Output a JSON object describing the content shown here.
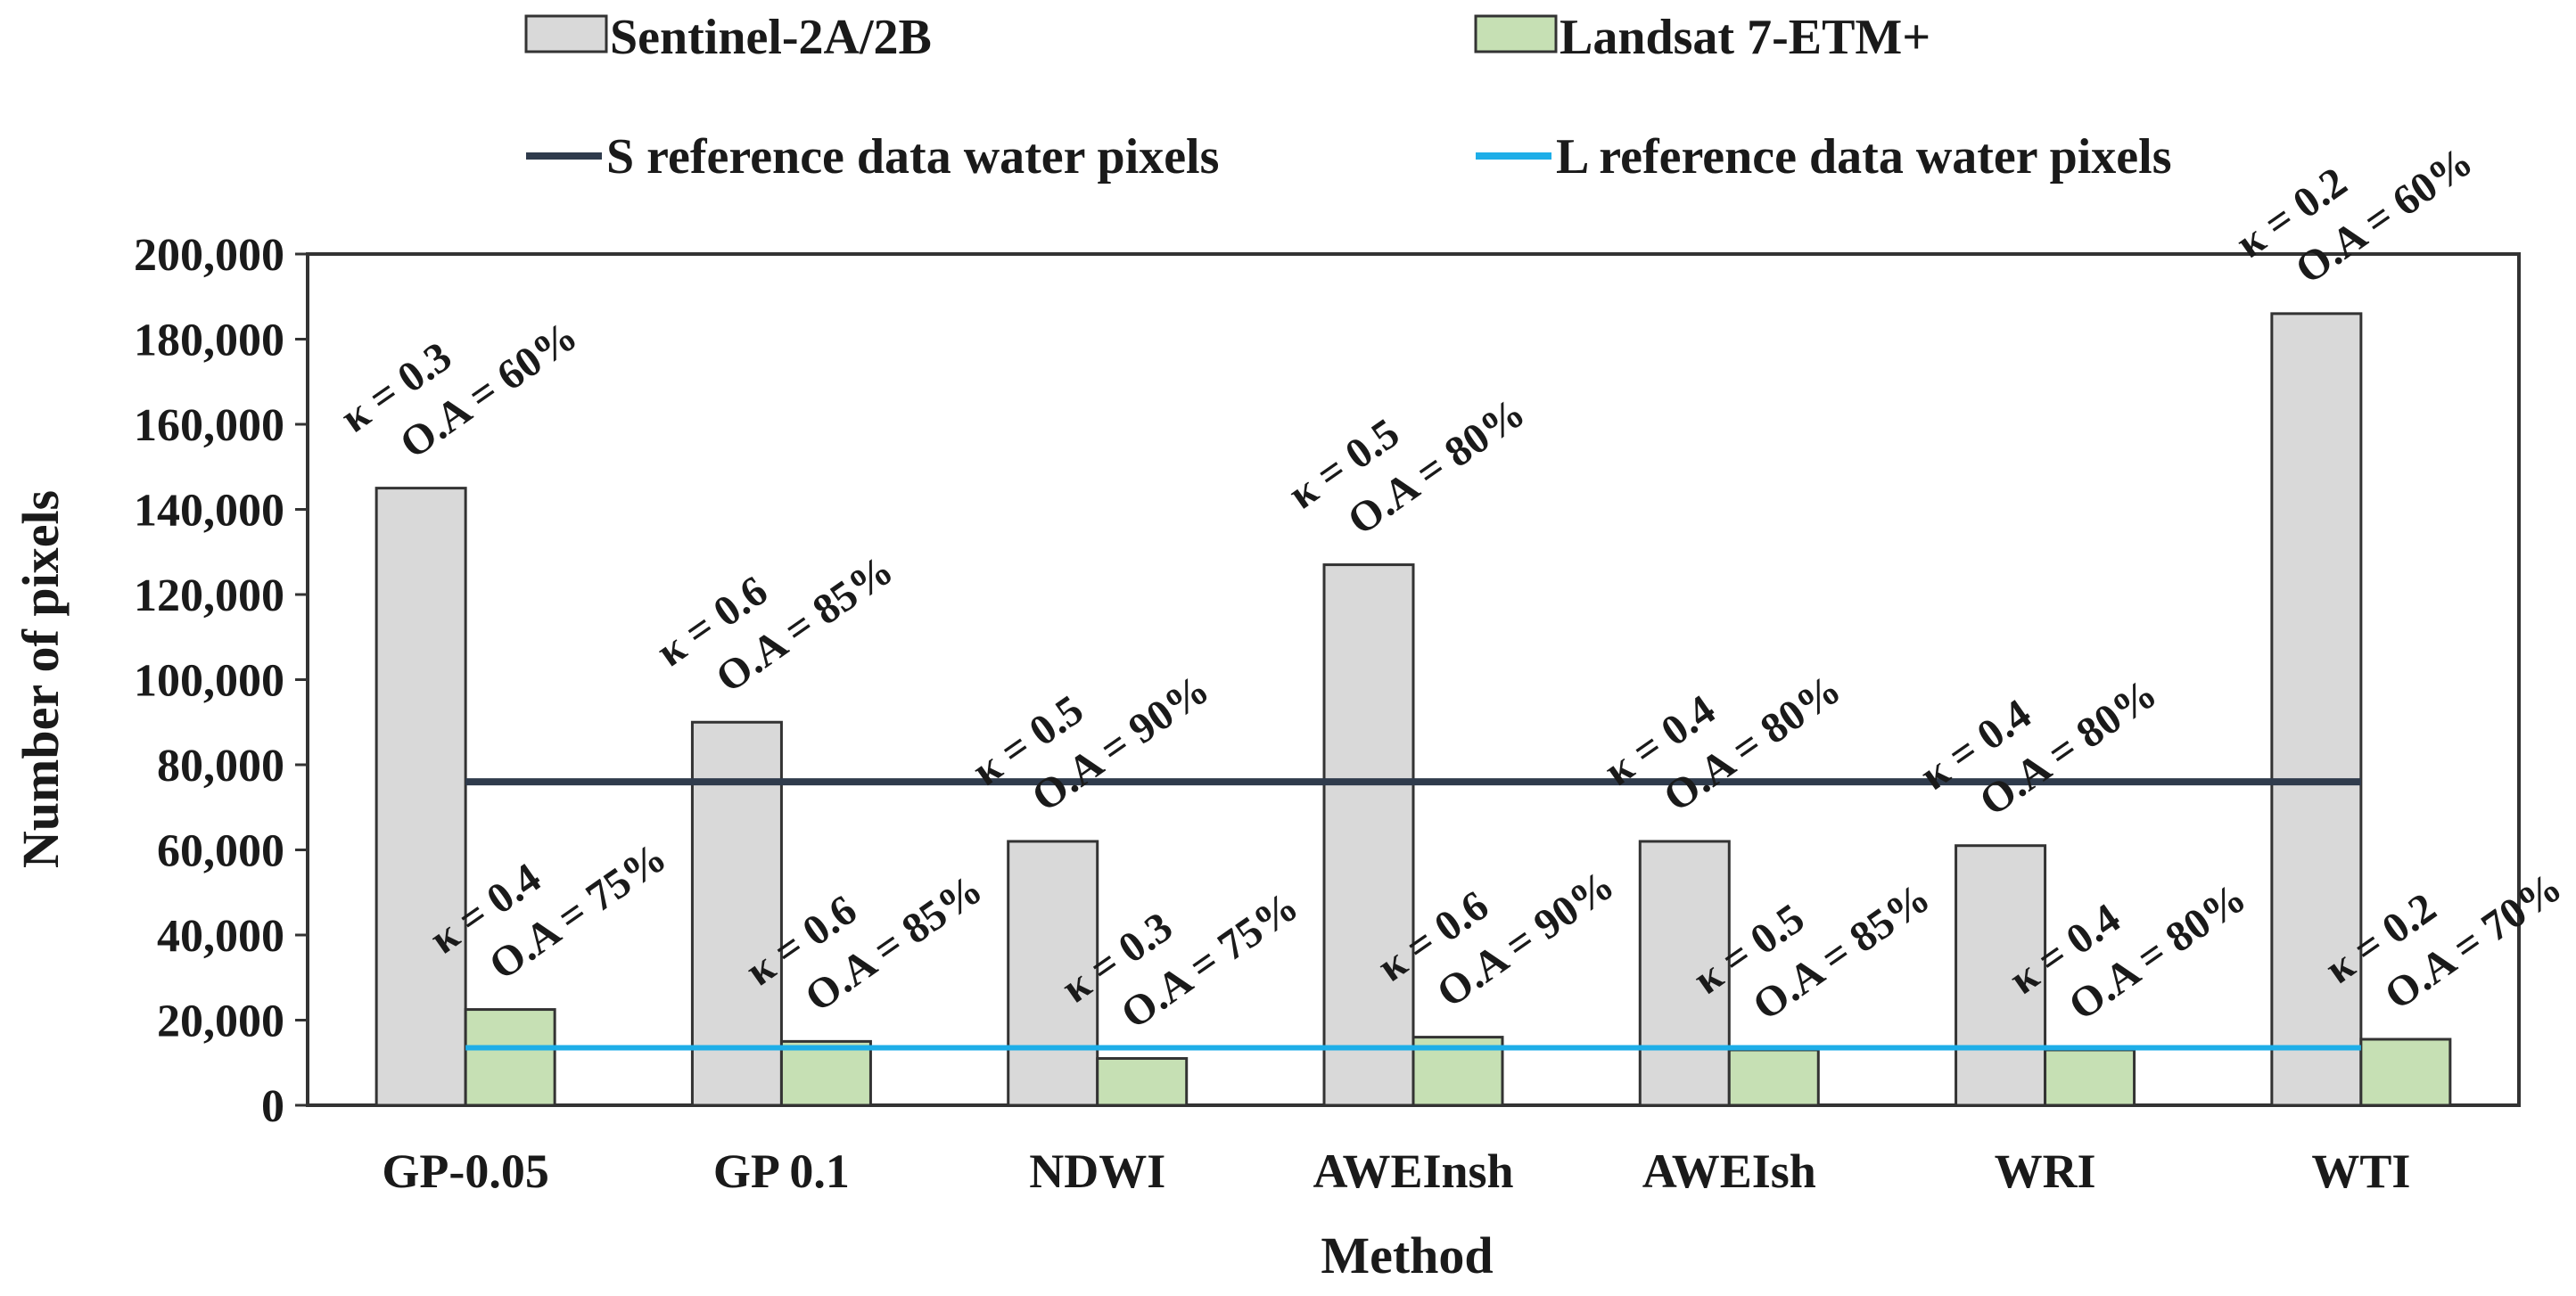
{
  "chart_data": {
    "type": "bar",
    "title": "",
    "xlabel": "Method",
    "ylabel": "Number of pixels",
    "ylim": [
      0,
      200000
    ],
    "y_ticks": [
      0,
      20000,
      40000,
      60000,
      80000,
      100000,
      120000,
      140000,
      160000,
      180000,
      200000
    ],
    "y_tick_labels": [
      "0",
      "20,000",
      "40,000",
      "60,000",
      "80,000",
      "100,000",
      "120,000",
      "140,000",
      "160,000",
      "180,000",
      "200,000"
    ],
    "categories": [
      "GP-0.05",
      "GP 0.1",
      "NDWI",
      "AWEInsh",
      "AWEIsh",
      "WRI",
      "WTI"
    ],
    "legend_position": "top",
    "series": [
      {
        "name": "Sentinel-2A/2B",
        "color": "#d9d9d9",
        "values": [
          145000,
          90000,
          62000,
          127000,
          62000,
          61000,
          186000
        ],
        "kappa_labels": [
          "κ = 0.3",
          "κ = 0.6",
          "κ = 0.5",
          "κ = 0.5",
          "κ = 0.4",
          "κ = 0.4",
          "κ = 0.2"
        ],
        "oa_labels": [
          "O.A = 60%",
          "O.A = 85%",
          "O.A = 90%",
          "O.A = 80%",
          "O.A = 80%",
          "O.A = 80%",
          "O.A = 60%"
        ]
      },
      {
        "name": "Landsat 7-ETM+",
        "color": "#c6e0b4",
        "values": [
          22500,
          15000,
          11000,
          16000,
          13000,
          13000,
          15500
        ],
        "kappa_labels": [
          "κ = 0.4",
          "κ = 0.6",
          "κ = 0.3",
          "κ = 0.6",
          "κ = 0.5",
          "κ = 0.4",
          "κ = 0.2"
        ],
        "oa_labels": [
          "O.A = 75%",
          "O.A = 85%",
          "O.A = 75%",
          "O.A = 90%",
          "O.A = 85%",
          "O.A = 80%",
          "O.A = 70%"
        ]
      }
    ],
    "reference_lines": [
      {
        "name": "S reference data water pixels",
        "value": 76000,
        "color": "#2f3b4c"
      },
      {
        "name": "L reference data water pixels",
        "value": 13500,
        "color": "#1eaee8"
      }
    ]
  }
}
